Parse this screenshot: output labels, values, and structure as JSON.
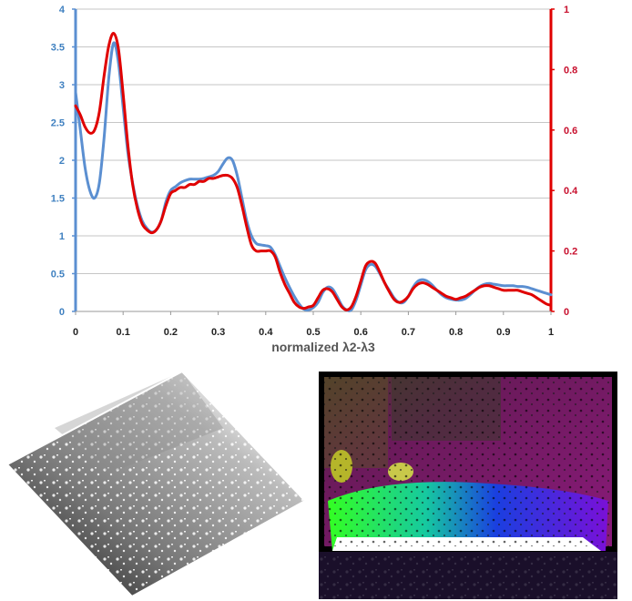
{
  "chart_data": {
    "type": "line",
    "xlabel": "normalized λ2-λ3",
    "ylabel": "",
    "ylabel_right": "",
    "xlim": [
      0,
      1
    ],
    "ylim": [
      0,
      4
    ],
    "ylim_right": [
      0,
      1
    ],
    "grid": true,
    "legend": "none",
    "x_ticks": [
      "0",
      "0.1",
      "0.2",
      "0.3",
      "0.4",
      "0.5",
      "0.6",
      "0.7",
      "0.8",
      "0.9",
      "1"
    ],
    "y_ticks_left": [
      "0",
      "0.5",
      "1",
      "1.5",
      "2",
      "2.5",
      "3",
      "3.5",
      "4"
    ],
    "y_ticks_right": [
      "0",
      "0.2",
      "0.4",
      "0.6",
      "0.8",
      "1"
    ],
    "series": [
      {
        "axis": "left",
        "color": "#5b8fd1",
        "x": [
          0,
          0.01,
          0.02,
          0.03,
          0.04,
          0.05,
          0.06,
          0.07,
          0.08,
          0.09,
          0.1,
          0.11,
          0.12,
          0.13,
          0.14,
          0.15,
          0.16,
          0.17,
          0.18,
          0.19,
          0.2,
          0.21,
          0.22,
          0.23,
          0.24,
          0.25,
          0.26,
          0.27,
          0.28,
          0.29,
          0.3,
          0.31,
          0.32,
          0.33,
          0.34,
          0.35,
          0.36,
          0.37,
          0.38,
          0.39,
          0.4,
          0.41,
          0.42,
          0.43,
          0.44,
          0.45,
          0.46,
          0.47,
          0.48,
          0.49,
          0.5,
          0.51,
          0.52,
          0.53,
          0.54,
          0.55,
          0.56,
          0.57,
          0.58,
          0.59,
          0.6,
          0.61,
          0.62,
          0.63,
          0.64,
          0.65,
          0.66,
          0.67,
          0.68,
          0.69,
          0.7,
          0.71,
          0.72,
          0.73,
          0.74,
          0.75,
          0.76,
          0.77,
          0.78,
          0.79,
          0.8,
          0.81,
          0.82,
          0.83,
          0.84,
          0.85,
          0.86,
          0.87,
          0.88,
          0.89,
          0.9,
          0.91,
          0.92,
          0.93,
          0.94,
          0.95,
          0.96,
          0.97,
          0.98,
          0.99,
          1.0
        ],
        "values": [
          2.9,
          2.4,
          1.9,
          1.6,
          1.5,
          1.7,
          2.3,
          3.1,
          3.55,
          3.3,
          2.7,
          2.1,
          1.7,
          1.4,
          1.2,
          1.1,
          1.05,
          1.08,
          1.2,
          1.45,
          1.6,
          1.65,
          1.7,
          1.73,
          1.75,
          1.75,
          1.75,
          1.76,
          1.78,
          1.8,
          1.85,
          1.95,
          2.03,
          2.0,
          1.8,
          1.5,
          1.2,
          1.0,
          0.9,
          0.88,
          0.87,
          0.85,
          0.75,
          0.6,
          0.45,
          0.32,
          0.2,
          0.1,
          0.03,
          0.02,
          0.05,
          0.12,
          0.25,
          0.32,
          0.3,
          0.2,
          0.08,
          0.02,
          0.02,
          0.15,
          0.35,
          0.55,
          0.62,
          0.6,
          0.5,
          0.38,
          0.28,
          0.18,
          0.12,
          0.12,
          0.2,
          0.32,
          0.4,
          0.42,
          0.4,
          0.35,
          0.28,
          0.22,
          0.18,
          0.16,
          0.15,
          0.15,
          0.17,
          0.22,
          0.28,
          0.33,
          0.36,
          0.37,
          0.36,
          0.35,
          0.34,
          0.34,
          0.34,
          0.33,
          0.33,
          0.32,
          0.3,
          0.28,
          0.26,
          0.24,
          0.22
        ]
      },
      {
        "axis": "right",
        "color": "#e00000",
        "x": [
          0,
          0.01,
          0.02,
          0.03,
          0.04,
          0.05,
          0.06,
          0.07,
          0.08,
          0.09,
          0.1,
          0.11,
          0.12,
          0.13,
          0.14,
          0.15,
          0.16,
          0.17,
          0.18,
          0.19,
          0.2,
          0.21,
          0.22,
          0.23,
          0.24,
          0.25,
          0.26,
          0.27,
          0.28,
          0.29,
          0.3,
          0.31,
          0.32,
          0.33,
          0.34,
          0.35,
          0.36,
          0.37,
          0.38,
          0.39,
          0.4,
          0.41,
          0.42,
          0.43,
          0.44,
          0.45,
          0.46,
          0.47,
          0.48,
          0.49,
          0.5,
          0.51,
          0.52,
          0.53,
          0.54,
          0.55,
          0.56,
          0.57,
          0.58,
          0.59,
          0.6,
          0.61,
          0.62,
          0.63,
          0.64,
          0.65,
          0.66,
          0.67,
          0.68,
          0.69,
          0.7,
          0.71,
          0.72,
          0.73,
          0.74,
          0.75,
          0.76,
          0.77,
          0.78,
          0.79,
          0.8,
          0.81,
          0.82,
          0.83,
          0.84,
          0.85,
          0.86,
          0.87,
          0.88,
          0.89,
          0.9,
          0.91,
          0.92,
          0.93,
          0.94,
          0.95,
          0.96,
          0.97,
          0.98,
          0.99,
          1.0
        ],
        "values": [
          0.68,
          0.65,
          0.61,
          0.59,
          0.6,
          0.66,
          0.78,
          0.88,
          0.92,
          0.87,
          0.72,
          0.55,
          0.42,
          0.34,
          0.29,
          0.27,
          0.26,
          0.27,
          0.3,
          0.35,
          0.39,
          0.4,
          0.41,
          0.41,
          0.42,
          0.42,
          0.43,
          0.43,
          0.44,
          0.44,
          0.445,
          0.45,
          0.45,
          0.44,
          0.41,
          0.35,
          0.28,
          0.22,
          0.2,
          0.2,
          0.2,
          0.2,
          0.18,
          0.13,
          0.09,
          0.06,
          0.03,
          0.015,
          0.01,
          0.015,
          0.02,
          0.045,
          0.07,
          0.075,
          0.065,
          0.04,
          0.015,
          0.005,
          0.015,
          0.05,
          0.1,
          0.15,
          0.165,
          0.16,
          0.13,
          0.095,
          0.065,
          0.04,
          0.03,
          0.035,
          0.05,
          0.075,
          0.09,
          0.095,
          0.09,
          0.08,
          0.07,
          0.06,
          0.05,
          0.045,
          0.04,
          0.045,
          0.05,
          0.06,
          0.07,
          0.08,
          0.085,
          0.085,
          0.08,
          0.075,
          0.07,
          0.07,
          0.07,
          0.07,
          0.065,
          0.06,
          0.055,
          0.045,
          0.035,
          0.025,
          0.02
        ]
      }
    ]
  },
  "images": {
    "depth_bg": "#ffffff",
    "normals_bg": "#000000"
  }
}
